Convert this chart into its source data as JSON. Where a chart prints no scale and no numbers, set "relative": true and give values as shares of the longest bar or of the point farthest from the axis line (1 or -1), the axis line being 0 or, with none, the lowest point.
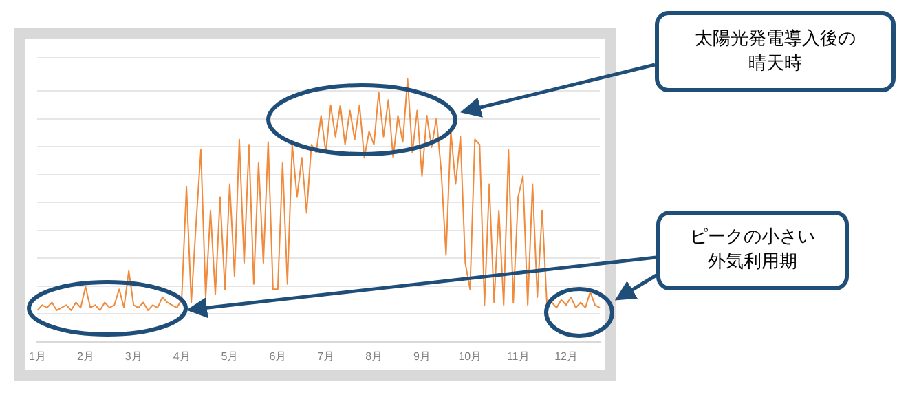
{
  "chart_data": {
    "type": "line",
    "relative": true,
    "grid": "y",
    "marker": "none",
    "line_style": "solid",
    "legend": false,
    "categories": [
      "1月",
      null,
      null,
      null,
      null,
      null,
      null,
      null,
      null,
      null,
      "2月",
      null,
      null,
      null,
      null,
      null,
      null,
      null,
      null,
      null,
      "3月",
      null,
      null,
      null,
      null,
      null,
      null,
      null,
      null,
      null,
      "4月",
      null,
      null,
      null,
      null,
      null,
      null,
      null,
      null,
      null,
      "5月",
      null,
      null,
      null,
      null,
      null,
      null,
      null,
      null,
      null,
      "6月",
      null,
      null,
      null,
      null,
      null,
      null,
      null,
      null,
      null,
      "7月",
      null,
      null,
      null,
      null,
      null,
      null,
      null,
      null,
      null,
      "8月",
      null,
      null,
      null,
      null,
      null,
      null,
      null,
      null,
      null,
      "9月",
      null,
      null,
      null,
      null,
      null,
      null,
      null,
      null,
      null,
      "10月",
      null,
      null,
      null,
      null,
      null,
      null,
      null,
      null,
      null,
      "11月",
      null,
      null,
      null,
      null,
      null,
      null,
      null,
      null,
      null,
      "12月",
      null,
      null,
      null,
      null,
      null,
      null,
      null
    ],
    "series": [
      {
        "color": "#f08a3c",
        "values": [
          0.12,
          0.14,
          0.13,
          0.15,
          0.12,
          0.13,
          0.14,
          0.12,
          0.15,
          0.13,
          0.21,
          0.13,
          0.14,
          0.12,
          0.15,
          0.13,
          0.14,
          0.2,
          0.13,
          0.27,
          0.14,
          0.13,
          0.15,
          0.12,
          0.14,
          0.13,
          0.17,
          0.15,
          0.14,
          0.13,
          0.16,
          0.59,
          0.15,
          0.45,
          0.73,
          0.17,
          0.5,
          0.18,
          0.55,
          0.2,
          0.6,
          0.25,
          0.77,
          0.3,
          0.75,
          0.22,
          0.68,
          0.3,
          0.76,
          0.2,
          0.2,
          0.68,
          0.22,
          0.75,
          0.55,
          0.7,
          0.49,
          0.75,
          0.72,
          0.86,
          0.72,
          0.9,
          0.78,
          0.9,
          0.75,
          0.88,
          0.77,
          0.9,
          0.7,
          0.8,
          0.75,
          0.95,
          0.78,
          0.92,
          0.7,
          0.86,
          0.76,
          1.0,
          0.72,
          0.88,
          0.63,
          0.86,
          0.74,
          0.85,
          0.65,
          0.33,
          0.8,
          0.6,
          0.78,
          0.3,
          0.2,
          0.77,
          0.75,
          0.14,
          0.6,
          0.15,
          0.5,
          0.14,
          0.73,
          0.15,
          0.55,
          0.63,
          0.14,
          0.6,
          0.17,
          0.5,
          0.14,
          0.15,
          0.13,
          0.16,
          0.14,
          0.17,
          0.13,
          0.15,
          0.13,
          0.19,
          0.14,
          0.13
        ]
      }
    ],
    "annotations": [
      "太陽光発電導入後の晴天時",
      "ピークの小さい外気利用期"
    ]
  }
}
